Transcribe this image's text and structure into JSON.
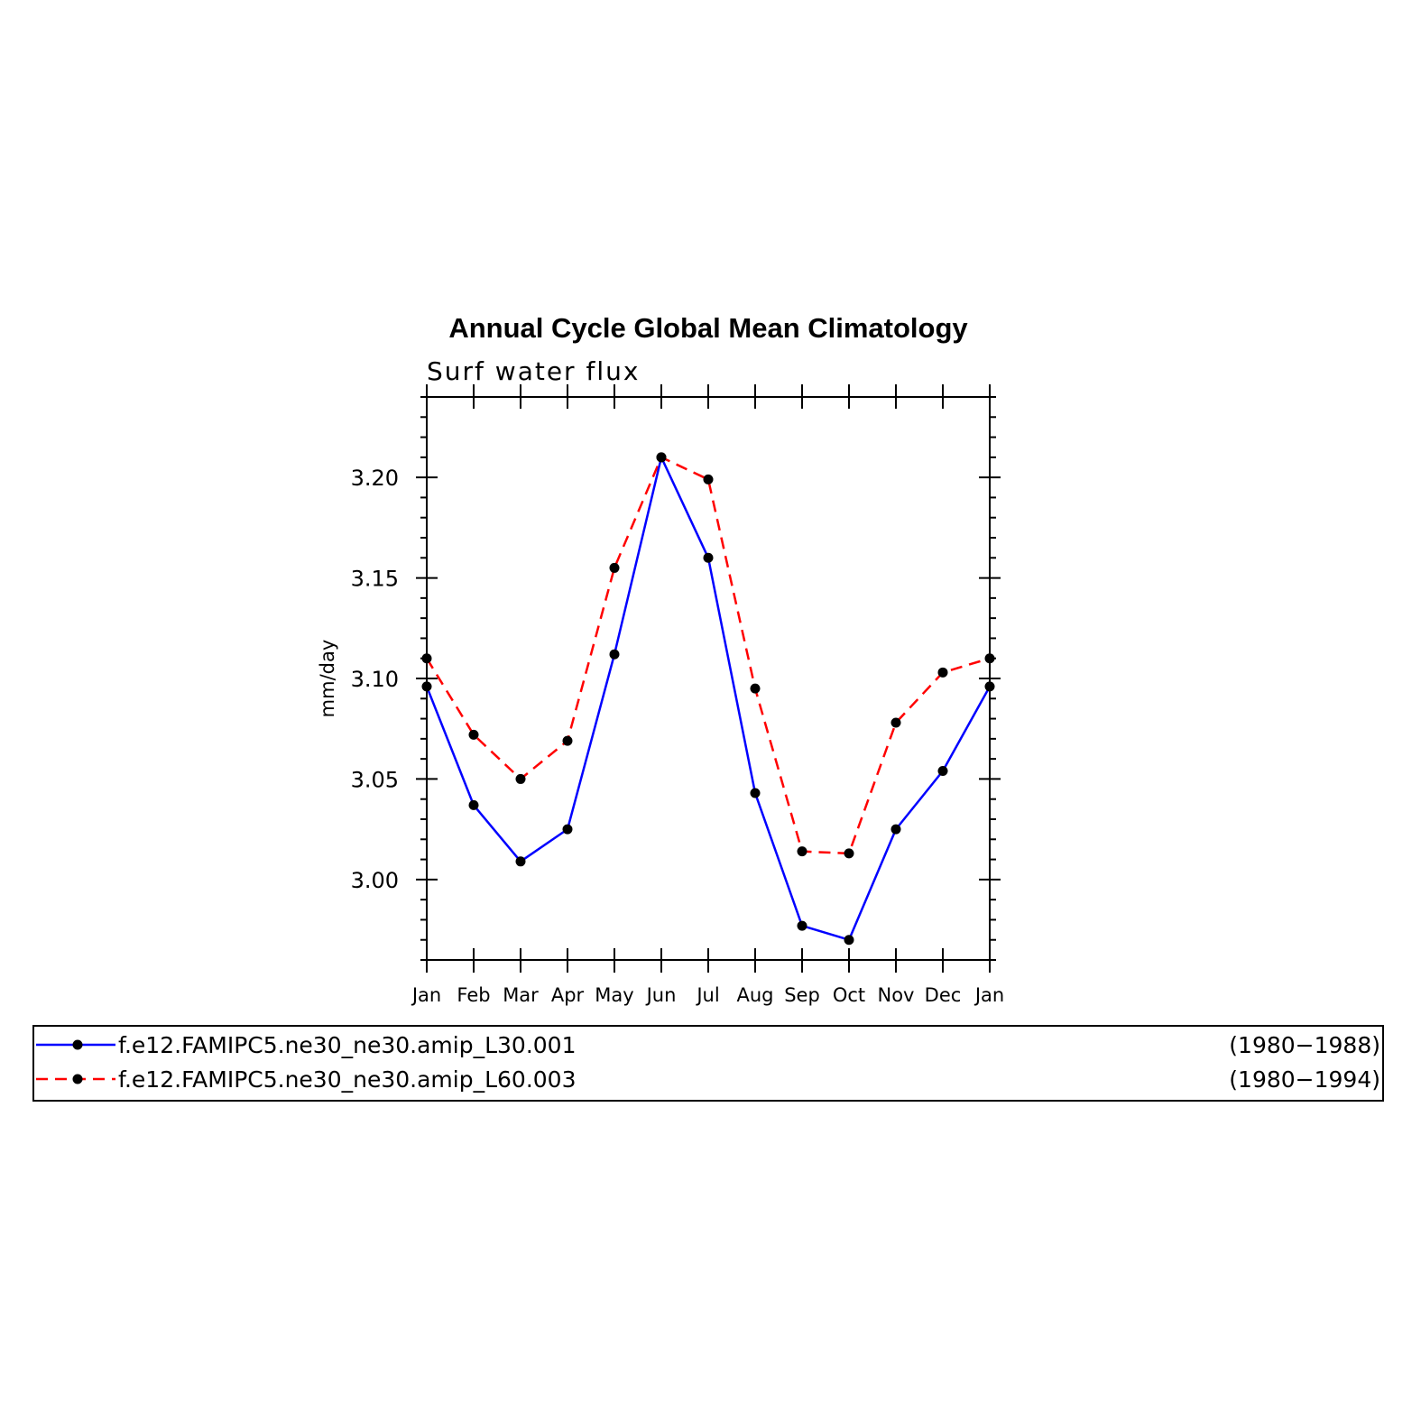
{
  "chart_data": {
    "type": "line",
    "title": "Annual Cycle Global Mean Climatology",
    "subtitle": "Surf water flux",
    "ylabel": "mm/day",
    "xlabel": "",
    "categories": [
      "Jan",
      "Feb",
      "Mar",
      "Apr",
      "May",
      "Jun",
      "Jul",
      "Aug",
      "Sep",
      "Oct",
      "Nov",
      "Dec",
      "Jan"
    ],
    "ylim": [
      2.96,
      3.24
    ],
    "yticks": [
      "3.00",
      "3.05",
      "3.10",
      "3.15",
      "3.20"
    ],
    "grid": false,
    "legend_position": "bottom",
    "series": [
      {
        "name": "f.e12.FAMIPC5.ne30_ne30.amip_L30.001",
        "period": "(1980−1988)",
        "color": "#0000ff",
        "dash": "solid",
        "values": [
          3.096,
          3.037,
          3.009,
          3.025,
          3.112,
          3.21,
          3.16,
          3.043,
          2.977,
          2.97,
          3.025,
          3.054,
          3.096
        ]
      },
      {
        "name": "f.e12.FAMIPC5.ne30_ne30.amip_L60.003",
        "period": "(1980−1994)",
        "color": "#ff0000",
        "dash": "dashed",
        "values": [
          3.11,
          3.072,
          3.05,
          3.069,
          3.155,
          3.21,
          3.199,
          3.095,
          3.014,
          3.013,
          3.078,
          3.103,
          3.11
        ]
      }
    ]
  }
}
